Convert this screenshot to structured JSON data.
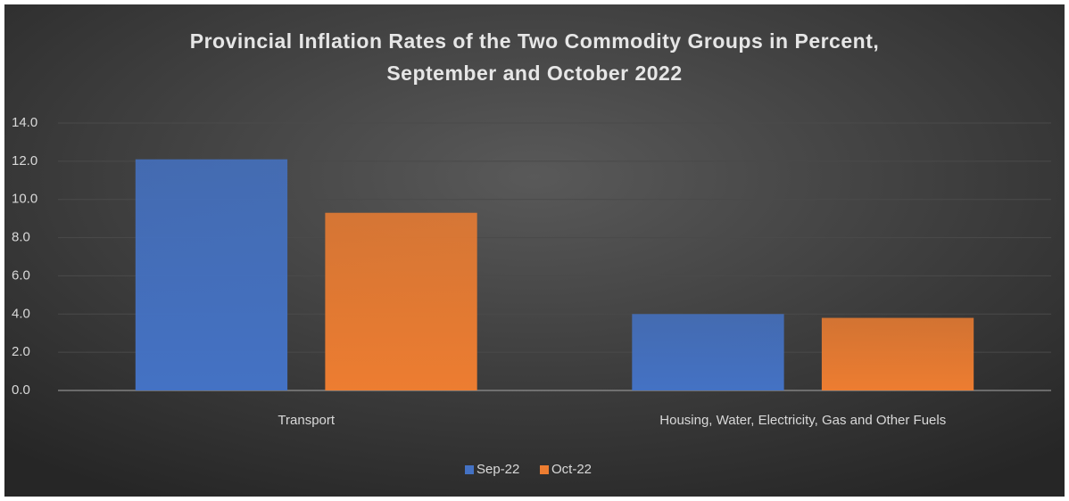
{
  "chart_data": {
    "type": "bar",
    "title": [
      "Provincial Inflation Rates of the Two Commodity Groups in Percent,",
      "September and October 2022"
    ],
    "categories": [
      "Transport",
      "Housing, Water, Electricity, Gas and Other Fuels"
    ],
    "series": [
      {
        "name": "Sep-22",
        "color": "#4472c4",
        "values": [
          12.1,
          4.0
        ]
      },
      {
        "name": "Oct-22",
        "color": "#ed7d31",
        "values": [
          9.3,
          3.8
        ]
      }
    ],
    "ylim": [
      0,
      14
    ],
    "yticks": [
      {
        "value": 0,
        "label": "0.0"
      },
      {
        "value": 2,
        "label": "2.0"
      },
      {
        "value": 4,
        "label": "4.0"
      },
      {
        "value": 6,
        "label": "6.0"
      },
      {
        "value": 8,
        "label": "8.0"
      },
      {
        "value": 10,
        "label": "10.0"
      },
      {
        "value": 12,
        "label": "12.0"
      },
      {
        "value": 14,
        "label": "14.0"
      }
    ],
    "grid": true,
    "legend": "bottom"
  }
}
